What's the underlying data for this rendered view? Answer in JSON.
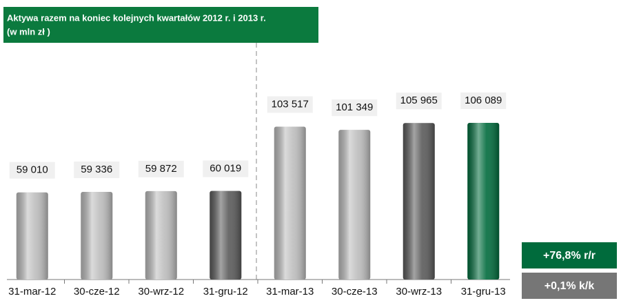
{
  "chart_data": {
    "type": "bar",
    "title": "Aktywa razem na  koniec kolejnych kwartałów 2012 r. i 2013 r.",
    "subtitle": "(w mln zł )",
    "categories": [
      "31-mar-12",
      "30-cze-12",
      "30-wrz-12",
      "31-gru-12",
      "31-mar-13",
      "30-cze-13",
      "30-wrz-13",
      "31-gru-13"
    ],
    "values": [
      59010,
      59336,
      59872,
      60019,
      103517,
      101349,
      105965,
      106089
    ],
    "value_labels": [
      "59 010",
      "59 336",
      "59 872",
      "60 019",
      "103 517",
      "101 349",
      "105 965",
      "106 089"
    ],
    "colors": [
      "#bdbdbd",
      "#bdbdbd",
      "#bdbdbd",
      "#5a5a5a",
      "#bdbdbd",
      "#bdbdbd",
      "#5a5a5a",
      "#006b3c"
    ],
    "annotations": [
      {
        "text": "+76,8% r/r",
        "color": "#006b3c"
      },
      {
        "text": "+0,1% k/k",
        "color": "#767676"
      }
    ]
  }
}
